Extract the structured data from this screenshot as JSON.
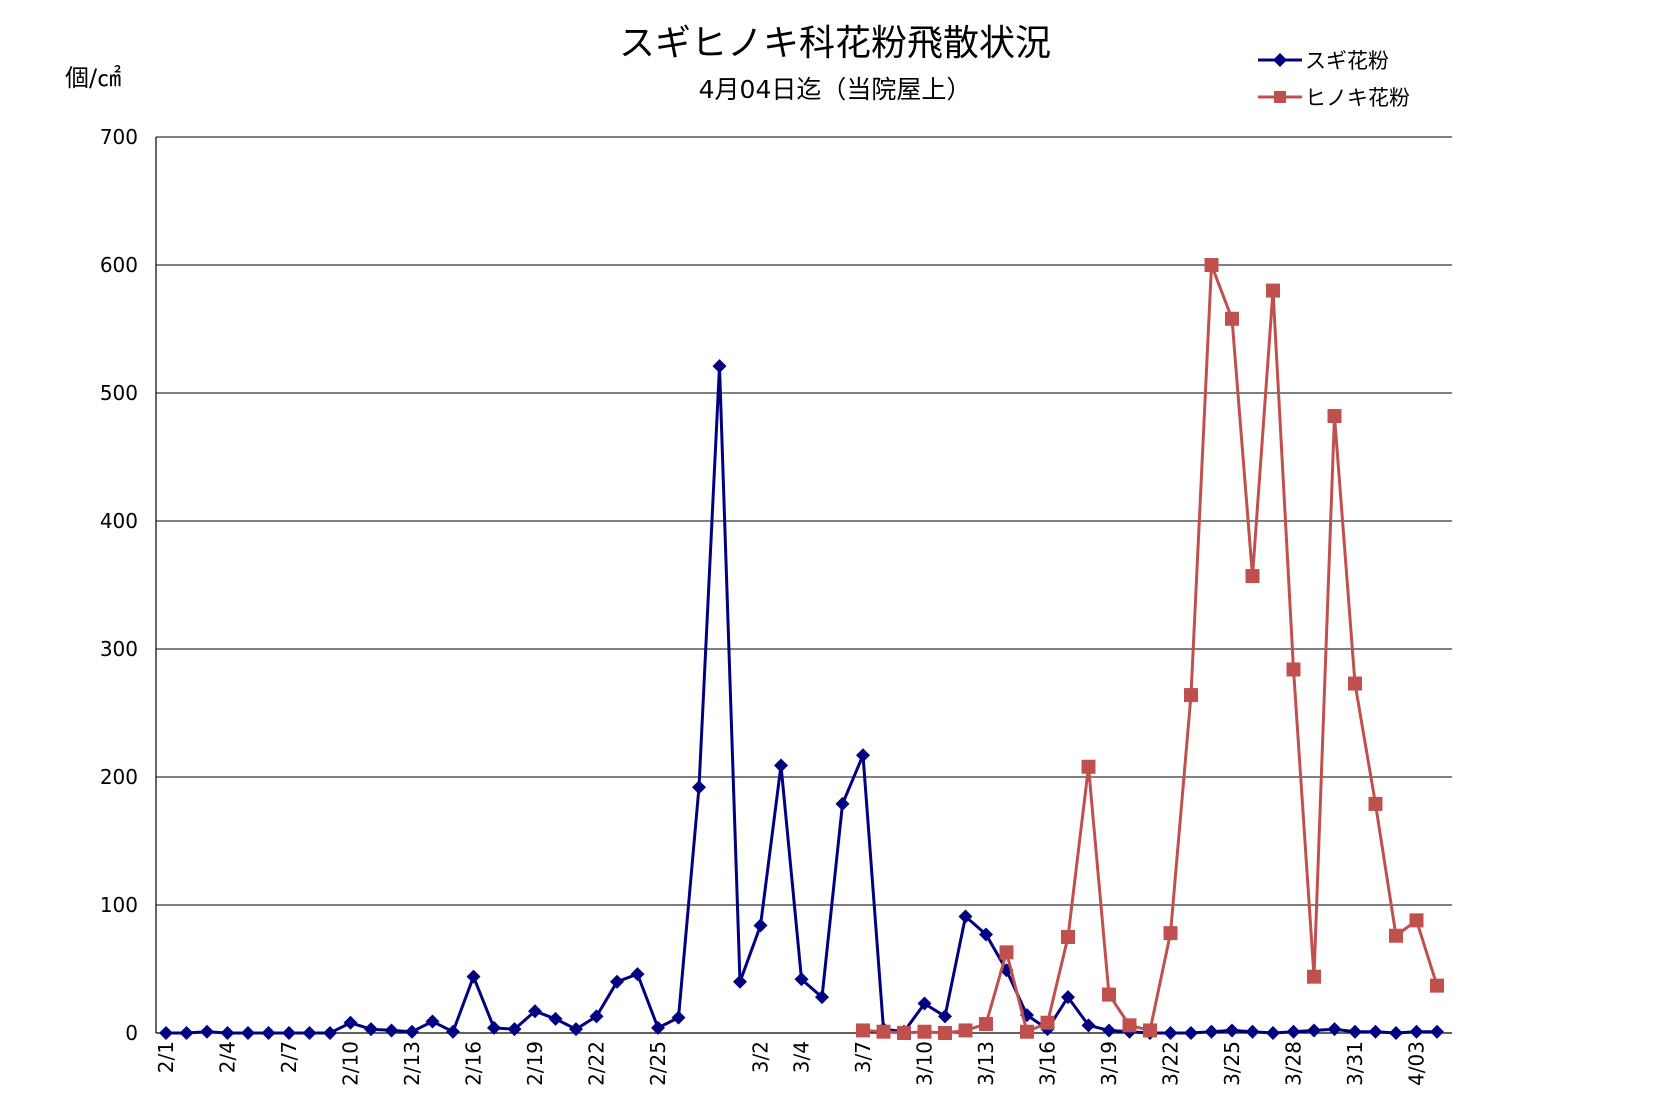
{
  "chart_data": {
    "type": "line",
    "title": "スギヒノキ科花粉飛散状況",
    "subtitle": "4月04日迄（当院屋上）",
    "ylabel": "個/㎠",
    "xlabel": "",
    "ylim": [
      0,
      700
    ],
    "yticks": [
      0,
      100,
      200,
      300,
      400,
      500,
      600,
      700
    ],
    "grid": true,
    "legend_position": "top-right",
    "categories": [
      "2/1",
      "2/2",
      "2/3",
      "2/4",
      "2/5",
      "2/6",
      "2/7",
      "2/8",
      "2/9",
      "2/10",
      "2/11",
      "2/12",
      "2/13",
      "2/14",
      "2/15",
      "2/16",
      "2/17",
      "2/18",
      "2/19",
      "2/20",
      "2/21",
      "2/22",
      "2/23",
      "2/24",
      "2/25",
      "2/26",
      "2/27",
      "2/28",
      "3/1",
      "3/2",
      "3/3",
      "3/4",
      "3/5",
      "3/6",
      "3/7",
      "3/8",
      "3/9",
      "3/10",
      "3/11",
      "3/12",
      "3/13",
      "3/14",
      "3/15",
      "3/16",
      "3/17",
      "3/18",
      "3/19",
      "3/20",
      "3/21",
      "3/22",
      "3/23",
      "3/24",
      "3/25",
      "3/26",
      "3/27",
      "3/28",
      "3/29",
      "3/30",
      "3/31",
      "4/01",
      "4/02",
      "4/03",
      "4/04"
    ],
    "x_tick_labels": [
      "2/1",
      "",
      "",
      "2/4",
      "",
      "",
      "2/7",
      "",
      "",
      "2/10",
      "",
      "",
      "2/13",
      "",
      "",
      "2/16",
      "",
      "",
      "2/19",
      "",
      "",
      "2/22",
      "",
      "",
      "2/25",
      "",
      "",
      "",
      "",
      "3/2",
      "",
      "3/4",
      "",
      "",
      "3/7",
      "",
      "",
      "3/10",
      "",
      "",
      "3/13",
      "",
      "",
      "3/16",
      "",
      "",
      "3/19",
      "",
      "",
      "3/22",
      "",
      "",
      "3/25",
      "",
      "",
      "3/28",
      "",
      "",
      "3/31",
      "",
      "",
      "4/03",
      ""
    ],
    "series": [
      {
        "name": "スギ花粉",
        "color": "#000080",
        "marker": "diamond",
        "values": [
          0,
          0,
          1,
          0,
          0,
          0,
          0,
          0,
          0,
          8,
          3,
          2,
          1,
          9,
          1,
          44,
          4,
          3,
          17,
          11,
          3,
          13,
          40,
          46,
          4,
          12,
          192,
          521,
          40,
          84,
          209,
          42,
          28,
          179,
          217,
          3,
          1,
          23,
          13,
          91,
          77,
          49,
          14,
          3,
          28,
          6,
          2,
          1,
          0,
          0,
          0,
          1,
          2,
          1,
          0,
          1,
          2,
          3,
          1,
          1,
          0,
          1,
          1
        ]
      },
      {
        "name": "ヒノキ花粉",
        "color": "#C0504D",
        "marker": "square",
        "values": [
          null,
          null,
          null,
          null,
          null,
          null,
          null,
          null,
          null,
          null,
          null,
          null,
          null,
          null,
          null,
          null,
          null,
          null,
          null,
          null,
          null,
          null,
          null,
          null,
          null,
          null,
          null,
          null,
          null,
          null,
          null,
          null,
          null,
          null,
          2,
          1,
          0,
          1,
          0,
          2,
          7,
          63,
          1,
          8,
          75,
          208,
          30,
          6,
          2,
          78,
          264,
          600,
          558,
          357,
          580,
          284,
          44,
          482,
          273,
          179,
          76,
          88,
          37
        ]
      }
    ]
  }
}
